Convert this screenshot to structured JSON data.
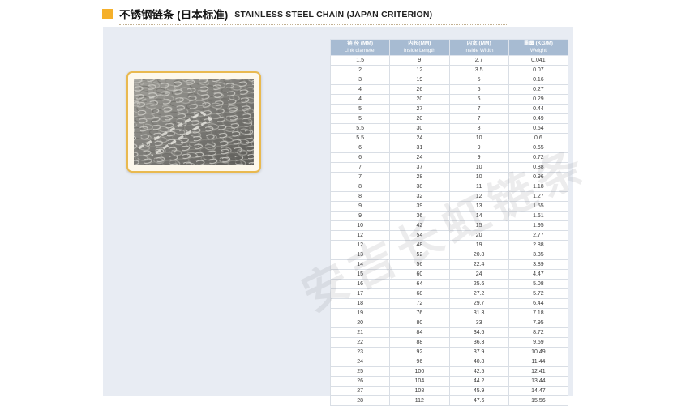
{
  "page": {
    "title_zh": "不锈钢链条 (日本标准)",
    "title_en": "STAINLESS STEEL CHAIN (JAPAN CRITERION)"
  },
  "colors": {
    "accent_yellow": "#f5b02b",
    "panel_bg": "#e8ecf3",
    "table_header_bg": "#a7bbd2",
    "photo_frame_border": "#e9b94f",
    "photo_frame_bg": "#fdf8ec"
  },
  "photo": {
    "description": "piled stainless steel chain links, grayscale"
  },
  "watermark": {
    "text": "安吉长虹链条"
  },
  "table": {
    "columns": [
      {
        "zh": "链 径 (MM)",
        "en": "Link diameter"
      },
      {
        "zh": "内长(MM)",
        "en": "Inside Length"
      },
      {
        "zh": "内宽 (MM)",
        "en": "Inside Width"
      },
      {
        "zh": "重量 (KG/M)",
        "en": "Weight"
      }
    ],
    "rows": [
      [
        "1.5",
        "9",
        "2.7",
        "0.041"
      ],
      [
        "2",
        "12",
        "3.5",
        "0.07"
      ],
      [
        "3",
        "19",
        "5",
        "0.16"
      ],
      [
        "4",
        "26",
        "6",
        "0.27"
      ],
      [
        "4",
        "20",
        "6",
        "0.29"
      ],
      [
        "5",
        "27",
        "7",
        "0.44"
      ],
      [
        "5",
        "20",
        "7",
        "0.49"
      ],
      [
        "5.5",
        "30",
        "8",
        "0.54"
      ],
      [
        "5.5",
        "24",
        "10",
        "0.6"
      ],
      [
        "6",
        "31",
        "9",
        "0.65"
      ],
      [
        "6",
        "24",
        "9",
        "0.72"
      ],
      [
        "7",
        "37",
        "10",
        "0.88"
      ],
      [
        "7",
        "28",
        "10",
        "0.96"
      ],
      [
        "8",
        "38",
        "11",
        "1.18"
      ],
      [
        "8",
        "32",
        "12",
        "1.27"
      ],
      [
        "9",
        "39",
        "13",
        "1.55"
      ],
      [
        "9",
        "36",
        "14",
        "1.61"
      ],
      [
        "10",
        "42",
        "15",
        "1.95"
      ],
      [
        "12",
        "54",
        "20",
        "2.77"
      ],
      [
        "12",
        "48",
        "19",
        "2.88"
      ],
      [
        "13",
        "52",
        "20.8",
        "3.35"
      ],
      [
        "14",
        "56",
        "22.4",
        "3.89"
      ],
      [
        "15",
        "60",
        "24",
        "4.47"
      ],
      [
        "16",
        "64",
        "25.6",
        "5.08"
      ],
      [
        "17",
        "68",
        "27.2",
        "5.72"
      ],
      [
        "18",
        "72",
        "29.7",
        "6.44"
      ],
      [
        "19",
        "76",
        "31.3",
        "7.18"
      ],
      [
        "20",
        "80",
        "33",
        "7.95"
      ],
      [
        "21",
        "84",
        "34.6",
        "8.72"
      ],
      [
        "22",
        "88",
        "36.3",
        "9.59"
      ],
      [
        "23",
        "92",
        "37.9",
        "10.49"
      ],
      [
        "24",
        "96",
        "40.8",
        "11.44"
      ],
      [
        "25",
        "100",
        "42.5",
        "12.41"
      ],
      [
        "26",
        "104",
        "44.2",
        "13.44"
      ],
      [
        "27",
        "108",
        "45.9",
        "14.47"
      ],
      [
        "28",
        "112",
        "47.6",
        "15.56"
      ]
    ]
  }
}
